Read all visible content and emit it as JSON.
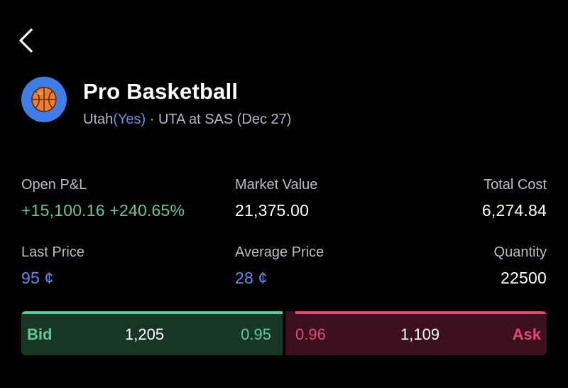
{
  "header": {
    "title": "Pro Basketball",
    "team": "Utah",
    "side": "(Yes)",
    "separator": " · ",
    "matchup": "UTA at SAS (Dec 27)",
    "avatar_icon": "basketball-icon"
  },
  "stats": {
    "open_pl": {
      "label": "Open P&L",
      "value": "+15,100.16 +240.65%"
    },
    "market_value": {
      "label": "Market Value",
      "value": "21,375.00"
    },
    "total_cost": {
      "label": "Total Cost",
      "value": "6,274.84"
    },
    "last_price": {
      "label": "Last Price",
      "value": "95 ¢"
    },
    "average_price": {
      "label": "Average Price",
      "value": "28 ¢"
    },
    "quantity": {
      "label": "Quantity",
      "value": "22500"
    }
  },
  "orderbook": {
    "bid_label": "Bid",
    "bid_size": "1,205",
    "bid_price": "0.95",
    "ask_price": "0.96",
    "ask_size": "1,109",
    "ask_label": "Ask"
  },
  "colors": {
    "background": "#000000",
    "gain_green": "#62c996",
    "price_blue": "#5b8ff0",
    "ask_red": "#e04a75",
    "avatar_blue": "#3f7de8"
  }
}
